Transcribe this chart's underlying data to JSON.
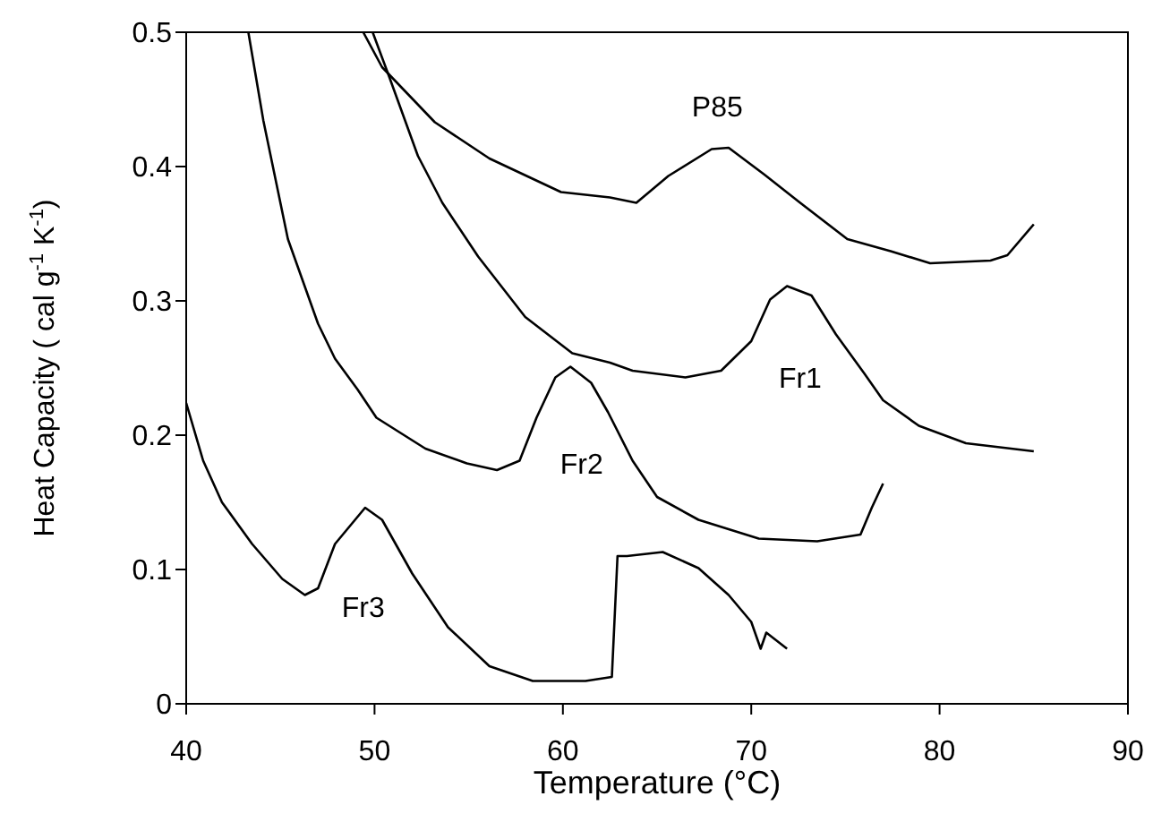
{
  "chart_data": {
    "type": "line",
    "xlabel": "Temperature  (°C)",
    "ylabel": "Heat Capacity ( cal g$^{-1}$ K$^{-1}$)",
    "xlim": [
      40,
      90
    ],
    "xticks": [
      40,
      50,
      60,
      70,
      80,
      90
    ],
    "ylim": [
      0,
      0.5
    ],
    "yticks": [
      0,
      0.1,
      0.2,
      0.3,
      0.4,
      0.5
    ],
    "series": [
      {
        "name": "P85",
        "color": "#000000",
        "x": [
          49.4,
          50.4,
          53.2,
          56.1,
          59.9,
          62.5,
          63.9,
          65.6,
          67.9,
          68.8,
          70.7,
          72.6,
          75.1,
          77.4,
          79.5,
          82.7,
          83.6,
          85.0
        ],
        "values": [
          0.5,
          0.474,
          0.433,
          0.406,
          0.381,
          0.377,
          0.373,
          0.393,
          0.413,
          0.414,
          0.394,
          0.373,
          0.346,
          0.337,
          0.328,
          0.33,
          0.334,
          0.357
        ]
      },
      {
        "name": "Fr1",
        "color": "#000000",
        "x": [
          49.9,
          50.8,
          52.3,
          53.6,
          55.5,
          58.0,
          60.5,
          62.5,
          63.7,
          66.5,
          68.4,
          70.0,
          71.0,
          71.9,
          73.2,
          74.5,
          76.0,
          77.0,
          78.9,
          81.4,
          85.0
        ],
        "values": [
          0.5,
          0.466,
          0.408,
          0.373,
          0.333,
          0.288,
          0.261,
          0.254,
          0.248,
          0.243,
          0.248,
          0.27,
          0.301,
          0.311,
          0.304,
          0.275,
          0.246,
          0.226,
          0.207,
          0.194,
          0.188
        ]
      },
      {
        "name": "Fr2",
        "color": "#000000",
        "x": [
          43.3,
          44.1,
          45.4,
          47.0,
          47.9,
          49.1,
          50.1,
          52.7,
          54.9,
          56.5,
          57.7,
          58.6,
          59.6,
          60.4,
          61.5,
          62.4,
          63.7,
          65.0,
          67.2,
          70.4,
          73.5,
          75.8,
          76.4,
          77.0
        ],
        "values": [
          0.5,
          0.434,
          0.346,
          0.283,
          0.257,
          0.234,
          0.213,
          0.19,
          0.179,
          0.174,
          0.181,
          0.213,
          0.243,
          0.251,
          0.239,
          0.217,
          0.181,
          0.154,
          0.137,
          0.123,
          0.121,
          0.126,
          0.146,
          0.164
        ]
      },
      {
        "name": "Fr3",
        "color": "#000000",
        "x": [
          40.0,
          40.9,
          41.9,
          43.5,
          45.1,
          46.3,
          47.0,
          47.9,
          49.5,
          50.4,
          52.0,
          53.9,
          56.1,
          58.4,
          61.2,
          62.6,
          62.9,
          63.4,
          65.3,
          67.2,
          68.8,
          70.0,
          70.5,
          70.8,
          71.9
        ],
        "values": [
          0.224,
          0.181,
          0.15,
          0.119,
          0.093,
          0.081,
          0.086,
          0.119,
          0.146,
          0.137,
          0.097,
          0.057,
          0.028,
          0.017,
          0.017,
          0.02,
          0.11,
          0.11,
          0.113,
          0.101,
          0.081,
          0.061,
          0.041,
          0.053,
          0.041
        ]
      }
    ]
  }
}
